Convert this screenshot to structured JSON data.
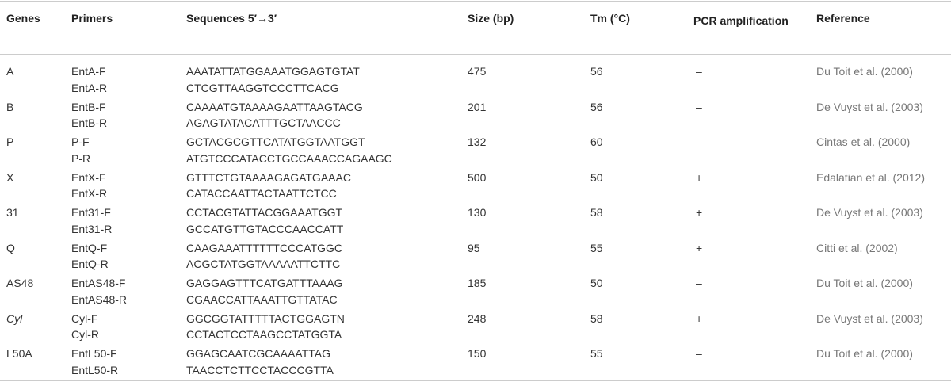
{
  "table": {
    "header": [
      "Genes",
      "Primers",
      "Sequences 5′→3′",
      "Size (bp)",
      "Tm (°C)",
      "PCR amplification",
      "Reference"
    ],
    "rows": [
      {
        "gene": "A",
        "primers": [
          "EntA-F",
          "EntA-R"
        ],
        "sequences": [
          "AAATATTATGGAAATGGAGTGTAT",
          "CTCGTTAAGGTCCCTTCACG"
        ],
        "size": 475,
        "tm": 56,
        "pcr": "–",
        "reference": "Du Toit et al. (2000)"
      },
      {
        "gene": "B",
        "primers": [
          "EntB-F",
          "EntB-R"
        ],
        "sequences": [
          "CAAAATGTAAAAGAATTAAGTACG",
          "AGAGTATACATTTGCTAACCC"
        ],
        "size": 201,
        "tm": 56,
        "pcr": "–",
        "reference": "De Vuyst et al. (2003)"
      },
      {
        "gene": "P",
        "primers": [
          "P-F",
          "P-R"
        ],
        "sequences": [
          "GCTACGCGTTCATATGGTAATGGT",
          "ATGTCCCATACCTGCCAAACCAGAAGC"
        ],
        "size": 132,
        "tm": 60,
        "pcr": "–",
        "reference": "Cintas et al. (2000)"
      },
      {
        "gene": "X",
        "primers": [
          "EntX-F",
          "EntX-R"
        ],
        "sequences": [
          "GTTTCTGTAAAAGAGATGAAAC",
          "CATACCAATTACTAATTCTCC"
        ],
        "size": 500,
        "tm": 50,
        "pcr": "+",
        "reference": "Edalatian et al. (2012)"
      },
      {
        "gene": "31",
        "primers": [
          "Ent31-F",
          "Ent31-R"
        ],
        "sequences": [
          "CCTACGTATTACGGAAATGGT",
          "GCCATGTTGTACCCAACCATT"
        ],
        "size": 130,
        "tm": 58,
        "pcr": "+",
        "reference": "De Vuyst et al. (2003)"
      },
      {
        "gene": "Q",
        "primers": [
          "EntQ-F",
          "EntQ-R"
        ],
        "sequences": [
          "CAAGAAATTTTTTCCCATGGC",
          "ACGCTATGGTAAAAATTCTTC"
        ],
        "size": 95,
        "tm": 55,
        "pcr": "+",
        "reference": "Citti et al. (2002)"
      },
      {
        "gene": "AS48",
        "primers": [
          "EntAS48-F",
          "EntAS48-R"
        ],
        "sequences": [
          "GAGGAGTTTCATGATTTAAAG",
          "CGAACCATTAAATTGTTATAC"
        ],
        "size": 185,
        "tm": 50,
        "pcr": "–",
        "reference": "Du Toit et al. (2000)"
      },
      {
        "gene": "Cyl",
        "primers": [
          "Cyl-F",
          "Cyl-R"
        ],
        "sequences": [
          "GGCGGTATTTTTACTGGAGTN",
          "CCTACTCCTAAGCCTATGGTA"
        ],
        "size": 248,
        "tm": 58,
        "pcr": "+",
        "reference": "De Vuyst et al. (2003)"
      },
      {
        "gene": "L50A",
        "primers": [
          "EntL50-F",
          "EntL50-R"
        ],
        "sequences": [
          "GGAGCAATCGCAAAATTAG",
          "TAACCTCTTCCTACCCGTTA"
        ],
        "size": 150,
        "tm": 55,
        "pcr": "–",
        "reference": "Du Toit et al. (2000)"
      }
    ]
  }
}
